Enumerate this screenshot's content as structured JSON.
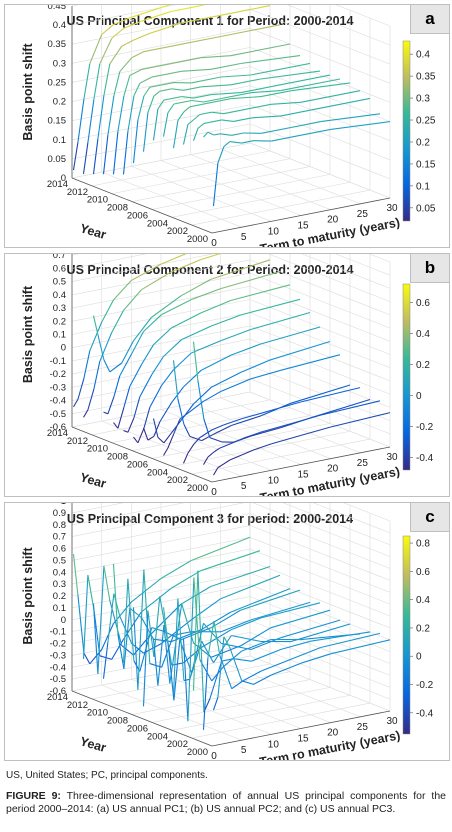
{
  "chart_data": [
    {
      "type": "surface3d",
      "title": "US Principal Component 1 for Period: 2000-2014",
      "panel_label": "a",
      "xlabel": "Term to maturity (years)",
      "ylabel": "Year",
      "zlabel": "Basis point shift",
      "x_ticks": [
        "0",
        "5",
        "10",
        "15",
        "20",
        "25",
        "30"
      ],
      "y_ticks": [
        "2014",
        "2012",
        "2010",
        "2008",
        "2006",
        "2004",
        "2002",
        "2000"
      ],
      "z_ticks": [
        "0",
        "0.05",
        "0.1",
        "0.15",
        "0.2",
        "0.25",
        "0.3",
        "0.35",
        "0.4",
        "0.45"
      ],
      "zlim": [
        0,
        0.45
      ],
      "colorbar_ticks": [
        "0.4",
        "0.35",
        "0.3",
        "0.25",
        "0.2",
        "0.15",
        "0.1",
        "0.05"
      ],
      "clim": [
        0.02,
        0.43
      ],
      "terms": [
        0.25,
        1,
        2,
        3,
        5,
        7,
        10,
        15,
        20,
        30
      ],
      "years": [
        2014,
        2013,
        2012,
        2011,
        2010,
        2009,
        2008,
        2007,
        2006,
        2005,
        2004,
        2003,
        2002,
        2001,
        2000
      ],
      "values": [
        [
          0.02,
          0.09,
          0.2,
          0.29,
          0.36,
          0.38,
          0.39,
          0.4,
          0.41,
          0.42
        ],
        [
          0.02,
          0.1,
          0.21,
          0.3,
          0.36,
          0.38,
          0.39,
          0.4,
          0.4,
          0.41
        ],
        [
          0.03,
          0.12,
          0.23,
          0.31,
          0.35,
          0.36,
          0.37,
          0.38,
          0.38,
          0.38
        ],
        [
          0.04,
          0.14,
          0.24,
          0.3,
          0.33,
          0.34,
          0.34,
          0.34,
          0.34,
          0.34
        ],
        [
          0.05,
          0.16,
          0.25,
          0.3,
          0.31,
          0.31,
          0.31,
          0.31,
          0.3,
          0.3
        ],
        [
          0.06,
          0.17,
          0.26,
          0.29,
          0.3,
          0.3,
          0.3,
          0.29,
          0.29,
          0.28
        ],
        [
          0.1,
          0.21,
          0.27,
          0.29,
          0.29,
          0.29,
          0.28,
          0.28,
          0.27,
          0.27
        ],
        [
          0.14,
          0.24,
          0.28,
          0.29,
          0.29,
          0.28,
          0.28,
          0.27,
          0.27,
          0.26
        ],
        [
          0.18,
          0.26,
          0.28,
          0.28,
          0.28,
          0.27,
          0.27,
          0.26,
          0.26,
          0.26
        ],
        [
          0.2,
          0.26,
          0.28,
          0.28,
          0.28,
          0.27,
          0.27,
          0.27,
          0.26,
          0.26
        ],
        [
          0.18,
          0.25,
          0.27,
          0.28,
          0.28,
          0.28,
          0.28,
          0.27,
          0.27,
          0.26
        ],
        [
          0.2,
          0.25,
          0.26,
          0.27,
          0.27,
          0.26,
          0.26,
          0.26,
          0.25,
          0.25
        ],
        [
          0.22,
          0.25,
          0.26,
          0.26,
          0.26,
          0.25,
          0.25,
          0.24,
          0.24,
          0.24
        ],
        [
          0.24,
          0.25,
          0.24,
          0.24,
          0.23,
          0.23,
          0.22,
          0.22,
          0.22,
          0.21
        ],
        [
          0.07,
          0.18,
          0.22,
          0.23,
          0.22,
          0.22,
          0.21,
          0.21,
          0.21,
          0.2
        ]
      ]
    },
    {
      "type": "surface3d",
      "title": "US Principal Component 2 for Period: 2000-2014",
      "panel_label": "b",
      "xlabel": "Term to maturity (years)",
      "ylabel": "Year",
      "zlabel": "Basis point shift",
      "x_ticks": [
        "0",
        "5",
        "10",
        "15",
        "20",
        "25",
        "30"
      ],
      "y_ticks": [
        "2014",
        "2012",
        "2010",
        "2008",
        "2006",
        "2004",
        "2002",
        "2000"
      ],
      "z_ticks": [
        "-0.6",
        "-0.5",
        "-0.4",
        "-0.3",
        "-0.2",
        "-0.1",
        "0",
        "0.1",
        "0.2",
        "0.3",
        "0.4",
        "0.5",
        "0.6",
        "0.7",
        "0.8"
      ],
      "zlim": [
        -0.6,
        0.8
      ],
      "colorbar_ticks": [
        "0.6",
        "0.4",
        "0.2",
        "0",
        "-0.2",
        "-0.4"
      ],
      "clim": [
        -0.48,
        0.72
      ],
      "terms": [
        0.25,
        1,
        2,
        3,
        5,
        7,
        10,
        15,
        20,
        30
      ],
      "years": [
        2014,
        2013,
        2012,
        2011,
        2010,
        2009,
        2008,
        2007,
        2006,
        2005,
        2004,
        2003,
        2002,
        2001,
        2000
      ],
      "values": [
        [
          -0.45,
          -0.4,
          -0.25,
          -0.05,
          0.15,
          0.3,
          0.42,
          0.5,
          0.55,
          0.6
        ],
        [
          -0.5,
          -0.45,
          -0.3,
          -0.1,
          0.1,
          0.25,
          0.38,
          0.47,
          0.52,
          0.57
        ],
        [
          0.3,
          0.15,
          -0.05,
          -0.15,
          -0.1,
          0.05,
          0.2,
          0.32,
          0.4,
          0.46
        ],
        [
          -0.4,
          -0.42,
          -0.3,
          -0.15,
          0.0,
          0.15,
          0.25,
          0.32,
          0.36,
          0.4
        ],
        [
          -0.45,
          -0.5,
          -0.35,
          -0.2,
          -0.05,
          0.08,
          0.18,
          0.25,
          0.3,
          0.33
        ],
        [
          -0.48,
          -0.5,
          -0.4,
          -0.25,
          -0.1,
          0.02,
          0.12,
          0.18,
          0.22,
          0.25
        ],
        [
          -0.5,
          -0.55,
          -0.45,
          -0.3,
          -0.15,
          -0.05,
          0.05,
          0.1,
          0.14,
          0.18
        ],
        [
          -0.4,
          -0.5,
          -0.48,
          -0.38,
          -0.25,
          -0.15,
          -0.05,
          0.02,
          0.06,
          0.1
        ],
        [
          -0.3,
          -0.45,
          -0.5,
          -0.45,
          -0.35,
          -0.25,
          -0.15,
          -0.08,
          -0.03,
          0.02
        ],
        [
          -0.55,
          -0.5,
          -0.4,
          -0.3,
          -0.25,
          -0.2,
          -0.15,
          -0.1,
          -0.08,
          -0.05
        ],
        [
          0.2,
          -0.1,
          -0.3,
          -0.4,
          -0.45,
          -0.42,
          -0.38,
          -0.35,
          -0.3,
          -0.25
        ],
        [
          -0.55,
          -0.48,
          -0.42,
          -0.38,
          -0.34,
          -0.32,
          -0.3,
          -0.28,
          -0.26,
          -0.24
        ],
        [
          0.4,
          0.1,
          -0.2,
          -0.35,
          -0.4,
          -0.42,
          -0.4,
          -0.38,
          -0.35,
          -0.3
        ],
        [
          -0.5,
          -0.45,
          -0.42,
          -0.4,
          -0.38,
          -0.36,
          -0.34,
          -0.32,
          -0.3,
          -0.28
        ],
        [
          -0.55,
          -0.5,
          -0.48,
          -0.46,
          -0.44,
          -0.42,
          -0.4,
          -0.38,
          -0.36,
          -0.34
        ]
      ]
    },
    {
      "type": "surface3d",
      "title": "US Principal Component 3 for period: 2000-2014",
      "panel_label": "c",
      "xlabel": "Term ro maturity (years)",
      "ylabel": "Year",
      "zlabel": "Basis point shift",
      "x_ticks": [
        "0",
        "5",
        "10",
        "15",
        "20",
        "25",
        "30"
      ],
      "y_ticks": [
        "2014",
        "2012",
        "2010",
        "2008",
        "2006",
        "2004",
        "2002",
        "2000"
      ],
      "z_ticks": [
        "-0.6",
        "-0.5",
        "-0.4",
        "-0.3",
        "-0.2",
        "-0.1",
        "0",
        "0.1",
        "0.2",
        "0.3",
        "0.4",
        "0.5",
        "0.6",
        "0.7",
        "0.8",
        "0.9",
        "1"
      ],
      "zlim": [
        -0.6,
        1.0
      ],
      "colorbar_ticks": [
        "0.8",
        "0.6",
        "0.4",
        "0.2",
        "0",
        "-0.2",
        "-0.4"
      ],
      "clim": [
        -0.55,
        0.85
      ],
      "terms": [
        0.25,
        1,
        2,
        3,
        5,
        7,
        10,
        15,
        20,
        30
      ],
      "years": [
        2014,
        2013,
        2012,
        2011,
        2010,
        2009,
        2008,
        2007,
        2006,
        2005,
        2004,
        2003,
        2002,
        2001,
        2000
      ],
      "values": [
        [
          0.55,
          0.2,
          -0.3,
          -0.4,
          -0.3,
          -0.1,
          0.05,
          0.2,
          0.3,
          0.4
        ],
        [
          -0.3,
          0.4,
          0.1,
          -0.3,
          -0.35,
          -0.2,
          0.0,
          0.15,
          0.25,
          0.32
        ],
        [
          0.2,
          -0.4,
          0.5,
          0.2,
          -0.2,
          -0.3,
          -0.15,
          0.05,
          0.15,
          0.22
        ],
        [
          -0.4,
          -0.1,
          0.3,
          0.1,
          -0.15,
          -0.25,
          -0.2,
          -0.05,
          0.08,
          0.18
        ],
        [
          0.6,
          0.0,
          -0.3,
          0.2,
          0.1,
          -0.1,
          -0.15,
          -0.1,
          0.0,
          0.1
        ],
        [
          -0.2,
          0.5,
          -0.2,
          -0.3,
          0.05,
          0.0,
          -0.1,
          -0.05,
          0.05,
          0.12
        ],
        [
          0.3,
          -0.4,
          0.6,
          -0.2,
          -0.25,
          0.0,
          0.0,
          -0.05,
          0.0,
          0.05
        ],
        [
          -0.5,
          0.3,
          -0.1,
          0.4,
          -0.2,
          -0.2,
          -0.1,
          0.0,
          0.05,
          0.08
        ],
        [
          0.1,
          -0.3,
          0.2,
          -0.3,
          0.35,
          0.0,
          -0.15,
          -0.1,
          0.0,
          0.05
        ],
        [
          0.4,
          0.1,
          -0.4,
          0.1,
          -0.2,
          0.2,
          0.0,
          -0.1,
          -0.05,
          0.0
        ],
        [
          -0.3,
          0.5,
          -0.2,
          -0.2,
          0.1,
          -0.1,
          0.1,
          0.0,
          -0.05,
          0.0
        ],
        [
          0.2,
          -0.5,
          0.7,
          0.0,
          -0.2,
          -0.1,
          0.0,
          0.05,
          0.0,
          -0.05
        ],
        [
          -0.2,
          0.8,
          -0.4,
          -0.3,
          0.0,
          0.0,
          -0.05,
          0.0,
          0.02,
          0.0
        ],
        [
          -0.5,
          0.1,
          0.4,
          0.1,
          -0.2,
          -0.15,
          -0.1,
          -0.05,
          0.0,
          0.02
        ],
        [
          -0.3,
          -0.2,
          0.3,
          0.2,
          -0.1,
          -0.15,
          -0.1,
          -0.05,
          -0.02,
          0.0
        ]
      ]
    }
  ],
  "footnote": "US, United States; PC, principal components.",
  "caption": {
    "label": "FIGURE 9:",
    "text": " Three-dimensional representation of annual US principal components for the period 2000–2014: (a) US annual PC1; (b) US annual PC2; and (c) US annual PC3."
  }
}
